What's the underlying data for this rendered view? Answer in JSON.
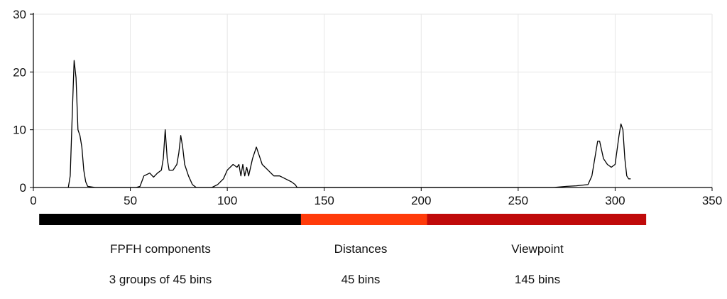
{
  "chart_data": {
    "type": "line",
    "title": "",
    "xlabel": "",
    "ylabel": "",
    "xlim": [
      0,
      350
    ],
    "ylim": [
      0,
      30
    ],
    "x_ticks": [
      "0",
      "50",
      "100",
      "150",
      "200",
      "250",
      "300",
      "350"
    ],
    "y_ticks": [
      "0",
      "10",
      "20",
      "30"
    ],
    "grid": true,
    "series": [
      {
        "color": "#000000",
        "points": [
          [
            18,
            0
          ],
          [
            19,
            2
          ],
          [
            20,
            12
          ],
          [
            21,
            22
          ],
          [
            22,
            19
          ],
          [
            23,
            10
          ],
          [
            24,
            9
          ],
          [
            25,
            7
          ],
          [
            26,
            3
          ],
          [
            27,
            1
          ],
          [
            28,
            0.2
          ],
          [
            32,
            0
          ],
          [
            40,
            0
          ],
          [
            53,
            0
          ],
          [
            55,
            0.2
          ],
          [
            57,
            2
          ],
          [
            60,
            2.5
          ],
          [
            62,
            1.8
          ],
          [
            64,
            2.5
          ],
          [
            66,
            3
          ],
          [
            67,
            5
          ],
          [
            68,
            10
          ],
          [
            69,
            5
          ],
          [
            70,
            3
          ],
          [
            72,
            3
          ],
          [
            74,
            4
          ],
          [
            75,
            6
          ],
          [
            76,
            9
          ],
          [
            77,
            7
          ],
          [
            78,
            4
          ],
          [
            80,
            2
          ],
          [
            82,
            0.5
          ],
          [
            84,
            0
          ],
          [
            92,
            0
          ],
          [
            95,
            0.5
          ],
          [
            98,
            1.5
          ],
          [
            100,
            3
          ],
          [
            103,
            4
          ],
          [
            105,
            3.5
          ],
          [
            106,
            4
          ],
          [
            107,
            2
          ],
          [
            108,
            4
          ],
          [
            109,
            2
          ],
          [
            110,
            3.5
          ],
          [
            111,
            2
          ],
          [
            113,
            5
          ],
          [
            115,
            7
          ],
          [
            116,
            6
          ],
          [
            118,
            4
          ],
          [
            121,
            3
          ],
          [
            124,
            2
          ],
          [
            127,
            2
          ],
          [
            130,
            1.5
          ],
          [
            133,
            1
          ],
          [
            135,
            0.5
          ],
          [
            136,
            0
          ],
          [
            150,
            0
          ],
          [
            200,
            0
          ],
          [
            250,
            0
          ],
          [
            268,
            0
          ],
          [
            275,
            0.2
          ],
          [
            280,
            0.3
          ],
          [
            286,
            0.5
          ],
          [
            288,
            2
          ],
          [
            290,
            6
          ],
          [
            291,
            8
          ],
          [
            292,
            8
          ],
          [
            294,
            5
          ],
          [
            296,
            4
          ],
          [
            298,
            3.5
          ],
          [
            300,
            4
          ],
          [
            302,
            9
          ],
          [
            303,
            11
          ],
          [
            304,
            10
          ],
          [
            305,
            5
          ],
          [
            306,
            2
          ],
          [
            307,
            1.5
          ],
          [
            308,
            1.5
          ]
        ]
      }
    ]
  },
  "segments": [
    {
      "title": "FPFH components",
      "subtitle": "3 groups of 45 bins",
      "start": 3,
      "end": 138,
      "color": "#000000"
    },
    {
      "title": "Distances",
      "subtitle": "45 bins",
      "start": 138,
      "end": 203,
      "color": "#ff3b0a"
    },
    {
      "title": "Viewpoint",
      "subtitle": "145 bins",
      "start": 203,
      "end": 316,
      "color": "#c00a0a"
    }
  ]
}
